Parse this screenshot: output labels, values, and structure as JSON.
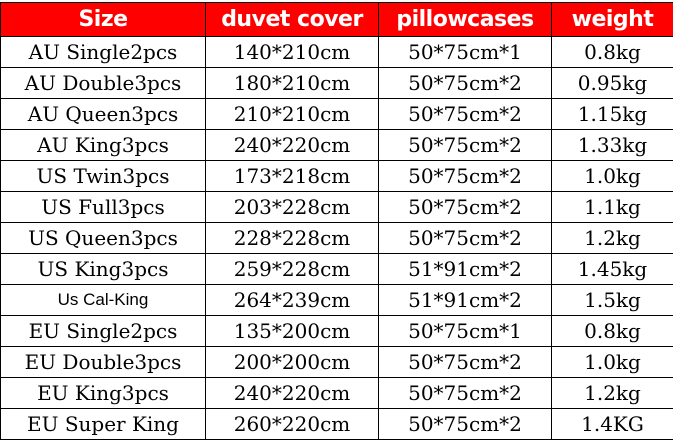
{
  "header": [
    "Size",
    "duvet cover",
    "pillowcases",
    "weight"
  ],
  "rows": [
    [
      "AU Single2pcs",
      "140*210cm",
      "50*75cm*1",
      "0.8kg"
    ],
    [
      "AU Double3pcs",
      "180*210cm",
      "50*75cm*2",
      "0.95kg"
    ],
    [
      "AU Queen3pcs",
      "210*210cm",
      "50*75cm*2",
      "1.15kg"
    ],
    [
      "AU King3pcs",
      "240*220cm",
      "50*75cm*2",
      "1.33kg"
    ],
    [
      "US Twin3pcs",
      "173*218cm",
      "50*75cm*2",
      "1.0kg"
    ],
    [
      "US Full3pcs",
      "203*228cm",
      "50*75cm*2",
      "1.1kg"
    ],
    [
      "US Queen3pcs",
      "228*228cm",
      "50*75cm*2",
      "1.2kg"
    ],
    [
      "US King3pcs",
      "259*228cm",
      "51*91cm*2",
      "1.45kg"
    ],
    [
      "Us Cal-King",
      "264*239cm",
      "51*91cm*2",
      "1.5kg"
    ],
    [
      "EU Single2pcs",
      "135*200cm",
      "50*75cm*1",
      "0.8kg"
    ],
    [
      "EU Double3pcs",
      "200*200cm",
      "50*75cm*2",
      "1.0kg"
    ],
    [
      "EU King3pcs",
      "240*220cm",
      "50*75cm*2",
      "1.2kg"
    ],
    [
      "EU Super King",
      "260*220cm",
      "50*75cm*2",
      "1.4KG"
    ]
  ],
  "colors": {
    "header_bg": "#ff0000",
    "header_text": "#ffffff"
  }
}
